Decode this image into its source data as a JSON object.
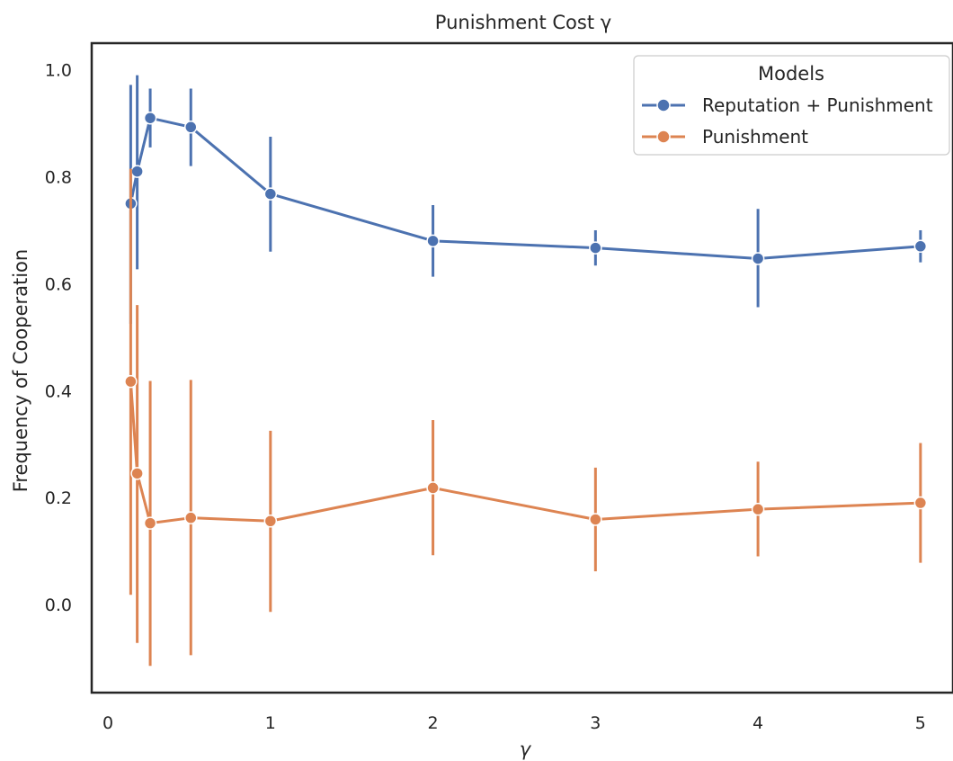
{
  "chart_data": {
    "type": "line",
    "title": "Punishment Cost γ",
    "xlabel": "γ",
    "ylabel": "Frequency of Cooperation",
    "xlim": [
      -0.1,
      5.2
    ],
    "ylim": [
      -0.165,
      1.05
    ],
    "xticks": [
      0,
      1,
      2,
      3,
      4,
      5
    ],
    "yticks": [
      0.0,
      0.2,
      0.4,
      0.6,
      0.8,
      1.0
    ],
    "xtick_labels": [
      "0",
      "1",
      "2",
      "3",
      "4",
      "5"
    ],
    "ytick_labels": [
      "0.0",
      "0.2",
      "0.4",
      "0.6",
      "0.8",
      "1.0"
    ],
    "grid": false,
    "legend_title": "Models",
    "legend_position": "top-right",
    "series": [
      {
        "name": "Reputation + Punishment",
        "color": "#4c72b0",
        "x": [
          0.14,
          0.18,
          0.26,
          0.51,
          1.0,
          2.0,
          3.0,
          4.0,
          5.0
        ],
        "y": [
          0.75,
          0.81,
          0.91,
          0.893,
          0.768,
          0.68,
          0.667,
          0.647,
          0.67
        ],
        "err_low": [
          0.525,
          0.627,
          0.855,
          0.82,
          0.66,
          0.613,
          0.634,
          0.556,
          0.64
        ],
        "err_high": [
          0.972,
          0.99,
          0.965,
          0.965,
          0.875,
          0.747,
          0.7,
          0.74,
          0.7
        ]
      },
      {
        "name": "Punishment",
        "color": "#dd8452",
        "x": [
          0.14,
          0.18,
          0.26,
          0.51,
          1.0,
          2.0,
          3.0,
          4.0,
          5.0
        ],
        "y": [
          0.417,
          0.245,
          0.152,
          0.162,
          0.156,
          0.218,
          0.159,
          0.178,
          0.19
        ],
        "err_low": [
          0.018,
          -0.072,
          -0.115,
          -0.095,
          -0.014,
          0.092,
          0.062,
          0.09,
          0.078
        ],
        "err_high": [
          0.815,
          0.56,
          0.418,
          0.42,
          0.325,
          0.345,
          0.256,
          0.267,
          0.302
        ]
      }
    ]
  }
}
